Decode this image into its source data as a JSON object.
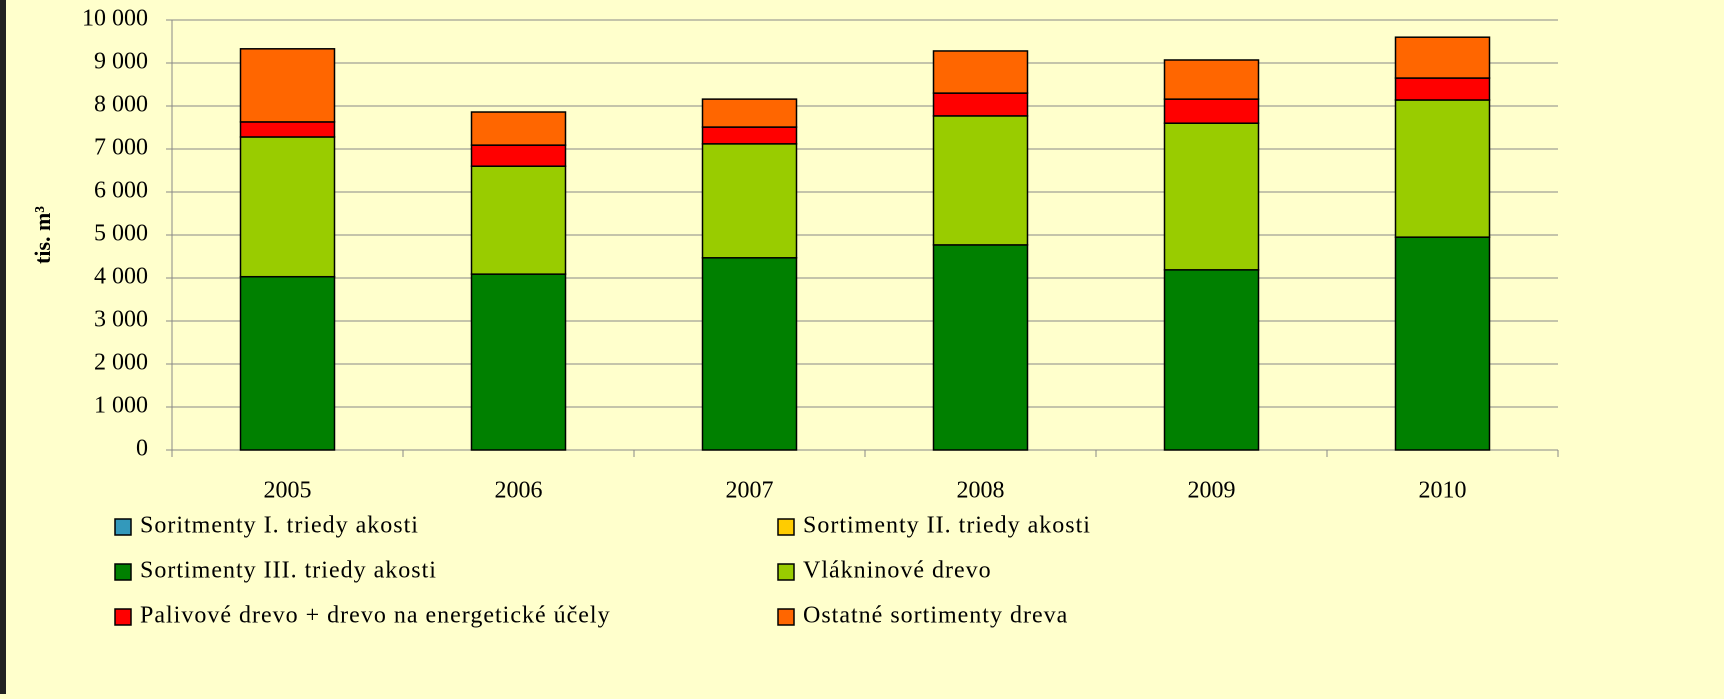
{
  "chart_data": {
    "type": "stacked_bar",
    "y_label": "tis. m³",
    "categories": [
      "2005",
      "2006",
      "2007",
      "2008",
      "2009",
      "2010"
    ],
    "series": [
      {
        "name": "Soritmenty I. triedy akosti",
        "color": "#3399bb",
        "values": [
          0,
          0,
          0,
          0,
          0,
          0
        ]
      },
      {
        "name": "Sortimenty II. triedy akosti",
        "color": "#ffcc00",
        "values": [
          0,
          0,
          0,
          0,
          0,
          0
        ]
      },
      {
        "name": "Sortimenty III. triedy akosti",
        "color": "#008000",
        "values": [
          4030,
          4090,
          4470,
          4770,
          4190,
          4950
        ]
      },
      {
        "name": "Vlákninové drevo",
        "color": "#99cc00",
        "values": [
          3250,
          2510,
          2650,
          3000,
          3410,
          3190
        ]
      },
      {
        "name": "Palivové drevo + drevo na energetické účely",
        "color": "#ff0000",
        "values": [
          350,
          490,
          390,
          530,
          560,
          510
        ]
      },
      {
        "name": "Ostatné sortimenty dreva",
        "color": "#ff6600",
        "values": [
          1700,
          770,
          650,
          980,
          910,
          950
        ]
      }
    ],
    "ylim": [
      0,
      10000
    ],
    "yticks": [
      0,
      {
        "value": 1000,
        "label": "1 000"
      },
      {
        "value": 2000,
        "label": "2 000"
      },
      {
        "value": 3000,
        "label": "3 000"
      },
      {
        "value": 4000,
        "label": "4 000"
      },
      {
        "value": 5000,
        "label": "5 000"
      },
      {
        "value": 6000,
        "label": "6 000"
      },
      {
        "value": 7000,
        "label": "7 000"
      },
      {
        "value": 8000,
        "label": "8 000"
      },
      {
        "value": 9000,
        "label": "9 000"
      },
      {
        "value": 10000,
        "label": "10 000"
      }
    ],
    "grid": true
  }
}
